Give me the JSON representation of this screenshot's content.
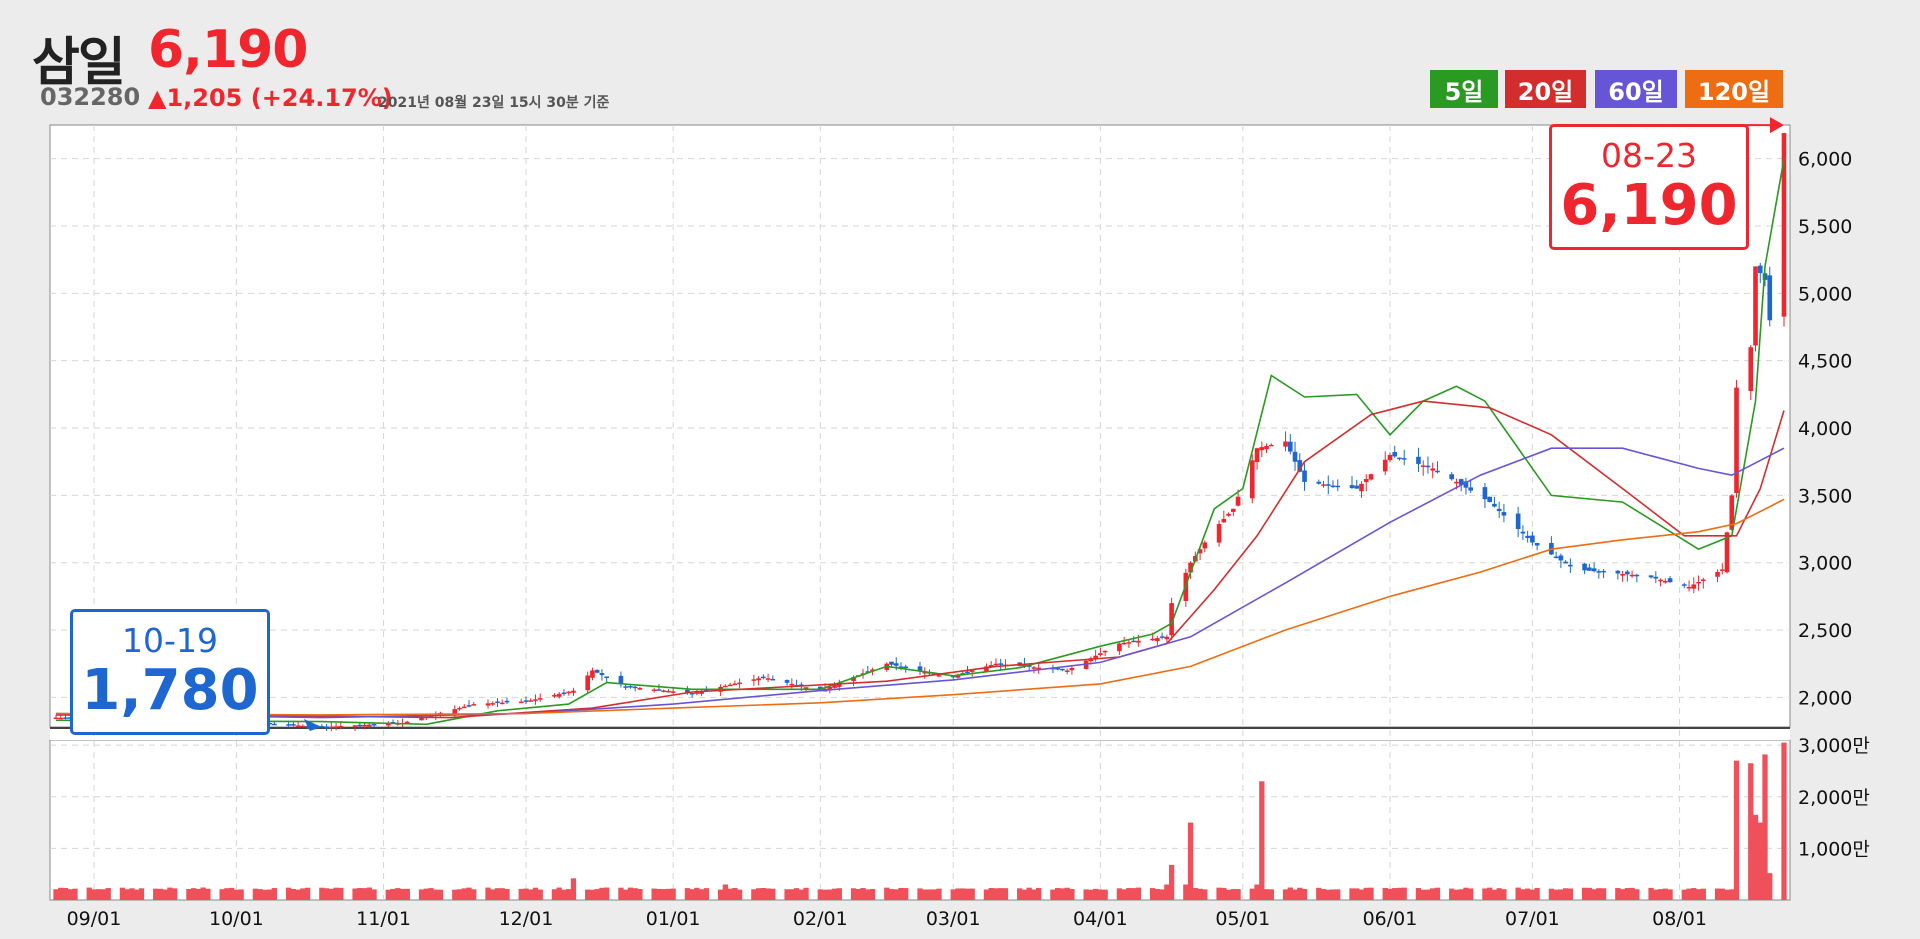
{
  "header": {
    "name": "삼일",
    "price": "6,190",
    "code": "032280",
    "change": "▲1,205 (+24.17%)",
    "asof": "2021년 08월 23일 15시 30분 기준"
  },
  "ma_buttons": [
    {
      "label": "5일",
      "color": "#2a9a22"
    },
    {
      "label": "20일",
      "color": "#d42d2d"
    },
    {
      "label": "60일",
      "color": "#6655d6"
    },
    {
      "label": "120일",
      "color": "#ee6d12"
    }
  ],
  "callouts": {
    "low": {
      "date": "10-19",
      "value": "1,780",
      "color": "#1e66d0"
    },
    "high": {
      "date": "08-23",
      "value": "6,190",
      "color": "#f0262f"
    }
  },
  "colors": {
    "up": "#f0262f",
    "down": "#1e66d0",
    "ma5": "#2a9a22",
    "ma20": "#d42d2d",
    "ma60": "#6655d6",
    "ma120": "#ee6d12",
    "volume": "#f0505a"
  },
  "chart_data": {
    "type": "candlestick",
    "x_range": [
      "2020-08-24",
      "2021-08-23"
    ],
    "x_ticks": [
      "09/01",
      "10/01",
      "11/01",
      "12/01",
      "01/01",
      "02/01",
      "03/01",
      "04/01",
      "05/01",
      "06/01",
      "07/01",
      "08/01"
    ],
    "x_tick_dates": [
      "2020-09-01",
      "2020-10-01",
      "2020-11-01",
      "2020-12-01",
      "2021-01-01",
      "2021-02-01",
      "2021-03-01",
      "2021-04-01",
      "2021-05-01",
      "2021-06-01",
      "2021-07-01",
      "2021-08-01"
    ],
    "y_range": [
      1780,
      6250
    ],
    "y_ticks": [
      2000,
      2500,
      3000,
      3500,
      4000,
      4500,
      5000,
      5500,
      6000
    ],
    "y_tick_labels": [
      "2,000",
      "2,500",
      "3,000",
      "3,500",
      "4,000",
      "4,500",
      "5,000",
      "5,500",
      "6,000"
    ],
    "volume_range": [
      0,
      31000000
    ],
    "volume_ticks": [
      10000000,
      20000000,
      30000000
    ],
    "volume_tick_labels": [
      "1,000만",
      "2,000만",
      "3,000만"
    ],
    "price_anchors": [
      [
        "2020-08-24",
        1850
      ],
      [
        "2020-09-10",
        1830
      ],
      [
        "2020-10-01",
        1820
      ],
      [
        "2020-10-19",
        1780
      ],
      [
        "2020-11-05",
        1810
      ],
      [
        "2020-11-20",
        1950
      ],
      [
        "2020-12-01",
        1970
      ],
      [
        "2020-12-11",
        2050
      ],
      [
        "2020-12-15",
        2200
      ],
      [
        "2020-12-22",
        2080
      ],
      [
        "2021-01-05",
        2030
      ],
      [
        "2021-01-20",
        2150
      ],
      [
        "2021-02-01",
        2050
      ],
      [
        "2021-02-15",
        2250
      ],
      [
        "2021-02-28",
        2150
      ],
      [
        "2021-03-10",
        2250
      ],
      [
        "2021-03-25",
        2200
      ],
      [
        "2021-04-05",
        2400
      ],
      [
        "2021-04-15",
        2450
      ],
      [
        "2021-04-16",
        2700
      ],
      [
        "2021-04-20",
        3000
      ],
      [
        "2021-04-25",
        3250
      ],
      [
        "2021-04-29",
        3400
      ],
      [
        "2021-05-04",
        3850
      ],
      [
        "2021-05-10",
        3900
      ],
      [
        "2021-05-14",
        3600
      ],
      [
        "2021-05-25",
        3550
      ],
      [
        "2021-06-01",
        3800
      ],
      [
        "2021-06-10",
        3700
      ],
      [
        "2021-06-15",
        3600
      ],
      [
        "2021-06-22",
        3450
      ],
      [
        "2021-07-01",
        3150
      ],
      [
        "2021-07-10",
        2950
      ],
      [
        "2021-07-25",
        2900
      ],
      [
        "2021-08-03",
        2820
      ],
      [
        "2021-08-10",
        2950
      ],
      [
        "2021-08-12",
        3500
      ],
      [
        "2021-08-13",
        4300
      ],
      [
        "2021-08-16",
        4600
      ],
      [
        "2021-08-17",
        5200
      ],
      [
        "2021-08-19",
        5100
      ],
      [
        "2021-08-20",
        4800
      ],
      [
        "2021-08-23",
        6190
      ]
    ],
    "series": [
      {
        "name": "5일",
        "color": "#2a9a22",
        "points": [
          [
            "2020-08-24",
            1830
          ],
          [
            "2020-10-19",
            1820
          ],
          [
            "2020-11-10",
            1800
          ],
          [
            "2020-11-25",
            1900
          ],
          [
            "2020-12-10",
            1950
          ],
          [
            "2020-12-18",
            2110
          ],
          [
            "2021-01-05",
            2060
          ],
          [
            "2021-02-01",
            2060
          ],
          [
            "2021-02-15",
            2230
          ],
          [
            "2021-03-01",
            2160
          ],
          [
            "2021-03-15",
            2220
          ],
          [
            "2021-04-01",
            2380
          ],
          [
            "2021-04-12",
            2470
          ],
          [
            "2021-04-16",
            2550
          ],
          [
            "2021-04-25",
            3400
          ],
          [
            "2021-05-01",
            3550
          ],
          [
            "2021-05-07",
            4390
          ],
          [
            "2021-05-14",
            4230
          ],
          [
            "2021-05-25",
            4250
          ],
          [
            "2021-06-01",
            3950
          ],
          [
            "2021-06-08",
            4200
          ],
          [
            "2021-06-15",
            4310
          ],
          [
            "2021-06-21",
            4200
          ],
          [
            "2021-06-27",
            3900
          ],
          [
            "2021-07-05",
            3500
          ],
          [
            "2021-07-20",
            3450
          ],
          [
            "2021-08-05",
            3100
          ],
          [
            "2021-08-12",
            3200
          ],
          [
            "2021-08-17",
            4200
          ],
          [
            "2021-08-19",
            5200
          ],
          [
            "2021-08-23",
            6000
          ]
        ]
      },
      {
        "name": "20일",
        "color": "#d42d2d",
        "points": [
          [
            "2020-08-24",
            1870
          ],
          [
            "2020-10-19",
            1860
          ],
          [
            "2020-11-15",
            1850
          ],
          [
            "2020-12-15",
            1920
          ],
          [
            "2021-01-05",
            2040
          ],
          [
            "2021-02-15",
            2120
          ],
          [
            "2021-03-10",
            2230
          ],
          [
            "2021-04-05",
            2300
          ],
          [
            "2021-04-15",
            2400
          ],
          [
            "2021-04-25",
            2800
          ],
          [
            "2021-05-04",
            3200
          ],
          [
            "2021-05-14",
            3750
          ],
          [
            "2021-05-28",
            4100
          ],
          [
            "2021-06-08",
            4200
          ],
          [
            "2021-06-22",
            4150
          ],
          [
            "2021-07-05",
            3950
          ],
          [
            "2021-07-20",
            3550
          ],
          [
            "2021-08-02",
            3200
          ],
          [
            "2021-08-13",
            3200
          ],
          [
            "2021-08-18",
            3550
          ],
          [
            "2021-08-23",
            4130
          ]
        ]
      },
      {
        "name": "60일",
        "color": "#6655d6",
        "points": [
          [
            "2020-08-24",
            1880
          ],
          [
            "2020-10-19",
            1850
          ],
          [
            "2020-12-01",
            1880
          ],
          [
            "2021-01-01",
            1950
          ],
          [
            "2021-02-01",
            2050
          ],
          [
            "2021-03-01",
            2130
          ],
          [
            "2021-04-01",
            2260
          ],
          [
            "2021-04-20",
            2450
          ],
          [
            "2021-05-10",
            2850
          ],
          [
            "2021-06-01",
            3300
          ],
          [
            "2021-06-20",
            3650
          ],
          [
            "2021-07-05",
            3850
          ],
          [
            "2021-07-20",
            3850
          ],
          [
            "2021-08-05",
            3700
          ],
          [
            "2021-08-12",
            3650
          ],
          [
            "2021-08-23",
            3850
          ]
        ]
      },
      {
        "name": "120일",
        "color": "#ee6d12",
        "points": [
          [
            "2020-08-24",
            1880
          ],
          [
            "2020-10-19",
            1870
          ],
          [
            "2020-12-01",
            1880
          ],
          [
            "2021-01-01",
            1920
          ],
          [
            "2021-02-01",
            1960
          ],
          [
            "2021-03-01",
            2020
          ],
          [
            "2021-04-01",
            2100
          ],
          [
            "2021-04-20",
            2230
          ],
          [
            "2021-05-10",
            2500
          ],
          [
            "2021-06-01",
            2750
          ],
          [
            "2021-06-20",
            2930
          ],
          [
            "2021-07-05",
            3100
          ],
          [
            "2021-07-20",
            3170
          ],
          [
            "2021-08-05",
            3230
          ],
          [
            "2021-08-13",
            3290
          ],
          [
            "2021-08-23",
            3470
          ]
        ]
      }
    ],
    "volume_baseline": 2200000,
    "volume_spikes": [
      [
        "2020-12-11",
        4200000
      ],
      [
        "2021-01-12",
        3000000
      ],
      [
        "2021-04-16",
        6800000
      ],
      [
        "2021-04-15",
        3000000
      ],
      [
        "2021-05-04",
        3000000
      ],
      [
        "2021-05-05",
        23000000
      ],
      [
        "2021-04-19",
        3000000
      ],
      [
        "2021-04-20",
        15000000
      ],
      [
        "2021-08-13",
        27000000
      ],
      [
        "2021-08-16",
        26500000
      ],
      [
        "2021-08-17",
        16500000
      ],
      [
        "2021-08-18",
        15000000
      ],
      [
        "2021-08-19",
        28200000
      ],
      [
        "2021-08-20",
        5200000
      ],
      [
        "2021-08-23",
        30500000
      ]
    ],
    "low_marker": {
      "date": "2020-10-19",
      "value": 1780
    },
    "high_marker": {
      "date": "2021-08-23",
      "value": 6190
    }
  }
}
